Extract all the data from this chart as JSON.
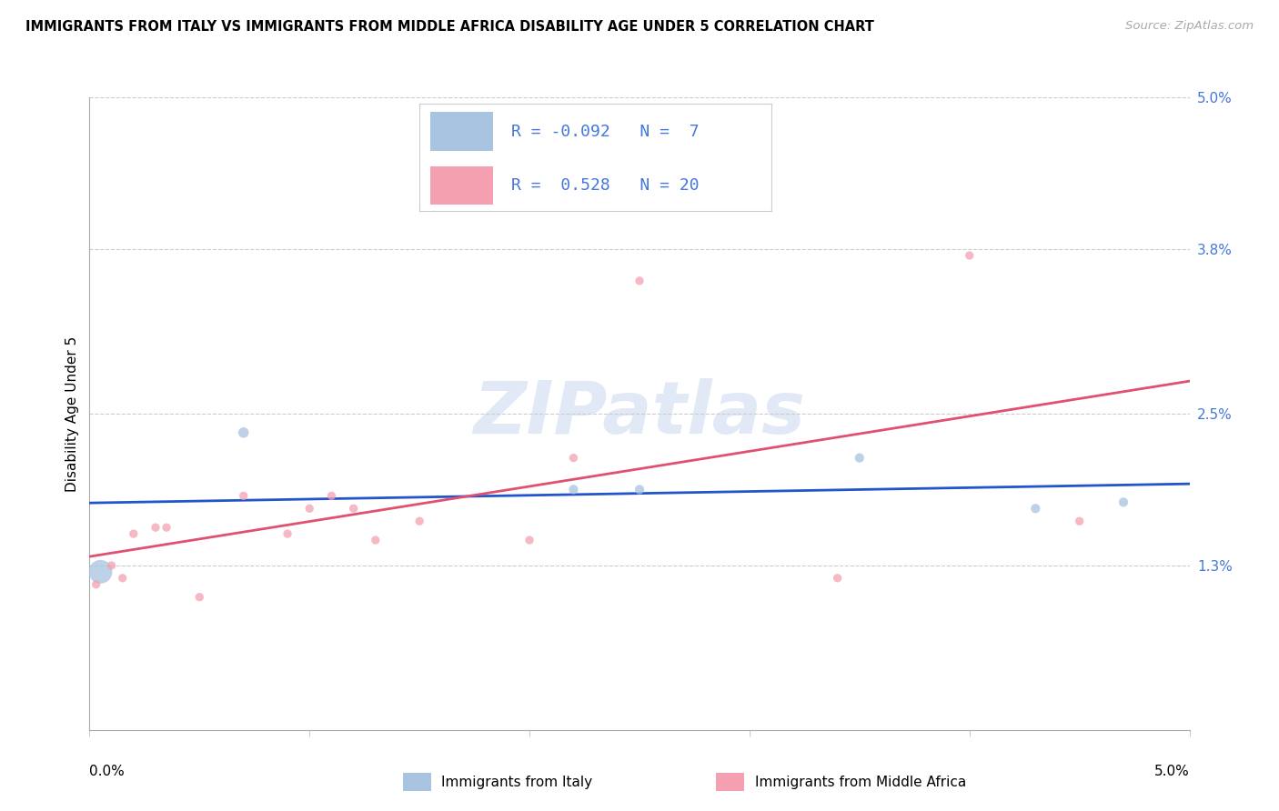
{
  "title": "IMMIGRANTS FROM ITALY VS IMMIGRANTS FROM MIDDLE AFRICA DISABILITY AGE UNDER 5 CORRELATION CHART",
  "source": "Source: ZipAtlas.com",
  "ylabel": "Disability Age Under 5",
  "xlim": [
    0.0,
    5.0
  ],
  "ylim": [
    0.0,
    5.0
  ],
  "italy_R": -0.092,
  "italy_N": 7,
  "africa_R": 0.528,
  "africa_N": 20,
  "legend_label_italy": "Immigrants from Italy",
  "legend_label_africa": "Immigrants from Middle Africa",
  "italy_color": "#a8c4e0",
  "italy_line_color": "#2255cc",
  "africa_color": "#f4a0b0",
  "africa_line_color": "#e05070",
  "text_blue": "#4477dd",
  "grid_color": "#cccccc",
  "watermark": "ZIPatlas",
  "right_yticks": [
    1.3,
    2.5,
    3.8,
    5.0
  ],
  "right_yticklabels": [
    "1.3%",
    "2.5%",
    "3.8%",
    "5.0%"
  ],
  "italy_points": [
    [
      0.05,
      1.25,
      350
    ],
    [
      0.7,
      2.35,
      70
    ],
    [
      2.2,
      1.9,
      55
    ],
    [
      2.5,
      1.9,
      55
    ],
    [
      3.5,
      2.15,
      55
    ],
    [
      4.3,
      1.75,
      55
    ],
    [
      4.7,
      1.8,
      55
    ]
  ],
  "africa_points": [
    [
      0.03,
      1.15,
      45
    ],
    [
      0.1,
      1.3,
      45
    ],
    [
      0.15,
      1.2,
      45
    ],
    [
      0.2,
      1.55,
      45
    ],
    [
      0.3,
      1.6,
      45
    ],
    [
      0.35,
      1.6,
      45
    ],
    [
      0.5,
      1.05,
      45
    ],
    [
      0.7,
      1.85,
      45
    ],
    [
      0.9,
      1.55,
      45
    ],
    [
      1.0,
      1.75,
      45
    ],
    [
      1.1,
      1.85,
      45
    ],
    [
      1.2,
      1.75,
      45
    ],
    [
      1.3,
      1.5,
      45
    ],
    [
      1.5,
      1.65,
      45
    ],
    [
      2.0,
      1.5,
      45
    ],
    [
      2.2,
      2.15,
      45
    ],
    [
      2.5,
      3.55,
      45
    ],
    [
      3.4,
      1.2,
      45
    ],
    [
      4.0,
      3.75,
      45
    ],
    [
      4.5,
      1.65,
      45
    ]
  ]
}
